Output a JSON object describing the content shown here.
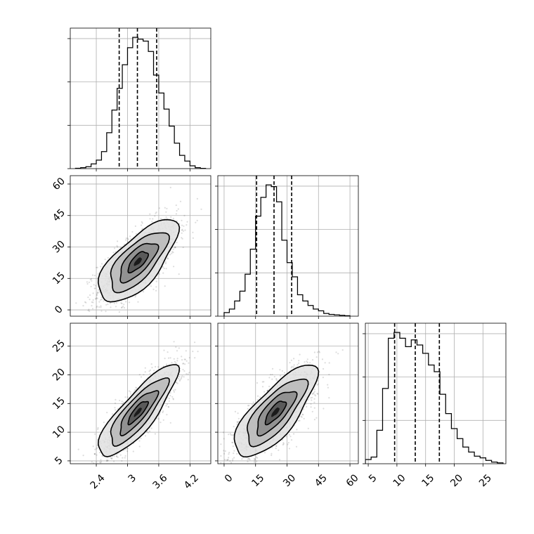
{
  "chart_data": {
    "type": "corner",
    "variables": [
      {
        "ticks": [
          2.4,
          3.0,
          3.6,
          4.2
        ],
        "range": [
          1.9,
          4.6
        ]
      },
      {
        "ticks": [
          0,
          15,
          30,
          45,
          60
        ],
        "range": [
          -3,
          64
        ]
      },
      {
        "ticks": [
          5,
          10,
          15,
          20,
          25
        ],
        "range": [
          4.5,
          29
        ]
      }
    ],
    "quantiles": [
      [
        2.84,
        3.19,
        3.56
      ],
      [
        15.5,
        23.8,
        32.2
      ],
      [
        9.6,
        13.2,
        17.4
      ]
    ],
    "histograms": [
      {
        "edges": [
          2.0,
          2.1,
          2.2,
          2.3,
          2.4,
          2.5,
          2.6,
          2.7,
          2.8,
          2.9,
          3.0,
          3.1,
          3.2,
          3.3,
          3.4,
          3.5,
          3.6,
          3.7,
          3.8,
          3.9,
          4.0,
          4.1,
          4.2,
          4.3,
          4.4,
          4.5
        ],
        "counts": [
          0.4,
          1.0,
          2.0,
          5,
          9,
          18,
          38,
          62,
          85,
          110,
          128,
          139,
          137,
          135,
          124,
          99,
          80,
          63,
          45,
          27,
          14,
          8,
          3,
          1,
          0.3
        ]
      },
      {
        "edges": [
          0,
          2.5,
          5,
          7.5,
          10,
          12.5,
          15,
          17.5,
          20,
          22.5,
          25,
          27.5,
          30,
          32.5,
          35,
          37.5,
          40,
          42.5,
          45,
          47.5,
          50,
          52.5,
          55,
          57.5,
          60
        ],
        "counts": [
          4,
          8,
          17,
          28,
          47,
          75,
          112,
          133,
          147,
          145,
          128,
          85,
          60,
          44,
          24,
          17,
          12,
          8,
          6,
          3,
          2,
          1.5,
          1,
          0.5
        ]
      },
      {
        "edges": [
          4.5,
          5.5,
          6.5,
          7.5,
          8.5,
          9.5,
          10.5,
          11.5,
          12.5,
          13.5,
          14.5,
          15.5,
          16.5,
          17.5,
          18.5,
          19.5,
          20.5,
          21.5,
          22.5,
          23.5,
          24.5,
          25.5,
          26.5,
          27.5,
          28.5
        ],
        "counts": [
          5,
          8,
          40,
          90,
          150,
          157,
          150,
          140,
          148,
          142,
          132,
          118,
          110,
          83,
          60,
          42,
          30,
          20,
          14,
          9,
          7,
          4,
          2,
          1
        ]
      }
    ],
    "scatter": [
      {
        "pair": [
          0,
          1
        ],
        "center": [
          3.2,
          23.0
        ],
        "sd": [
          0.38,
          9.8
        ],
        "corr": 0.7
      },
      {
        "pair": [
          0,
          2
        ],
        "center": [
          3.2,
          13.5
        ],
        "sd": [
          0.38,
          4.0
        ],
        "corr": 0.84
      },
      {
        "pair": [
          1,
          2
        ],
        "center": [
          24.5,
          13.5
        ],
        "sd": [
          9.8,
          4.0
        ],
        "corr": 0.76
      }
    ]
  }
}
